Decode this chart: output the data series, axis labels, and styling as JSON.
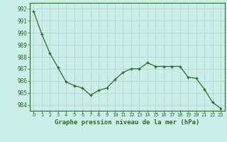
{
  "hours": [
    0,
    1,
    2,
    3,
    4,
    5,
    6,
    7,
    8,
    9,
    10,
    11,
    12,
    13,
    14,
    15,
    16,
    17,
    18,
    19,
    20,
    21,
    22,
    23
  ],
  "pressure": [
    991.8,
    989.9,
    988.3,
    987.1,
    985.9,
    985.6,
    985.4,
    984.8,
    985.2,
    985.4,
    986.1,
    986.7,
    987.0,
    987.0,
    987.5,
    987.2,
    987.2,
    987.2,
    987.2,
    986.3,
    986.2,
    985.3,
    984.2,
    983.7
  ],
  "ylim": [
    983.5,
    992.5
  ],
  "yticks": [
    984,
    985,
    986,
    987,
    988,
    989,
    990,
    991,
    992
  ],
  "xlabel": "Graphe pression niveau de la mer (hPa)",
  "line_color": "#2d6a2d",
  "marker_color": "#2d6a2d",
  "bg_color": "#cceee8",
  "grid_color": "#aad4ce",
  "border_color": "#2d6a2d",
  "xlabel_color": "#2d6a2d",
  "tick_color": "#2d6a2d"
}
